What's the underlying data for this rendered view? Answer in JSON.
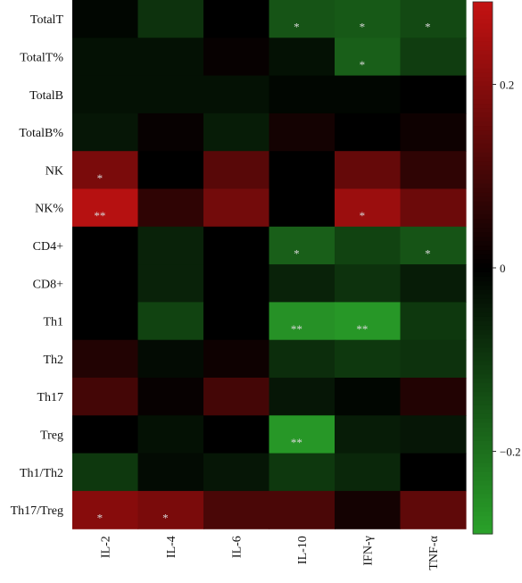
{
  "chart_data": {
    "type": "heatmap",
    "rows": [
      "TotalT",
      "TotalT%",
      "TotalB",
      "TotalB%",
      "NK",
      "NK%",
      "CD4+",
      "CD8+",
      "Th1",
      "Th2",
      "Th17",
      "Treg",
      "Th1/Th2",
      "Th17/Treg"
    ],
    "columns": [
      "IL-2",
      "IL-4",
      "IL-6",
      "IL-10",
      "IFN-γ",
      "TNF-α"
    ],
    "values": [
      [
        -0.01,
        -0.09,
        0.0,
        -0.15,
        -0.16,
        -0.13
      ],
      [
        -0.03,
        -0.03,
        0.01,
        -0.03,
        -0.17,
        -0.11
      ],
      [
        -0.03,
        -0.03,
        -0.03,
        -0.01,
        -0.01,
        0.0
      ],
      [
        -0.04,
        0.01,
        -0.05,
        0.03,
        0.0,
        0.02
      ],
      [
        0.18,
        0.0,
        0.13,
        0.0,
        0.15,
        0.07
      ],
      [
        0.27,
        0.07,
        0.17,
        0.0,
        0.23,
        0.16
      ],
      [
        0.0,
        -0.06,
        0.0,
        -0.17,
        -0.12,
        -0.15
      ],
      [
        0.0,
        -0.06,
        0.0,
        -0.06,
        -0.09,
        -0.05
      ],
      [
        0.0,
        -0.12,
        0.0,
        -0.26,
        -0.27,
        -0.1
      ],
      [
        0.05,
        -0.02,
        0.02,
        -0.08,
        -0.1,
        -0.09
      ],
      [
        0.1,
        0.01,
        0.1,
        -0.04,
        -0.01,
        0.05
      ],
      [
        0.0,
        -0.03,
        0.0,
        -0.27,
        -0.05,
        -0.04
      ],
      [
        -0.1,
        -0.02,
        -0.04,
        -0.1,
        -0.07,
        0.0
      ],
      [
        0.2,
        0.18,
        0.11,
        0.11,
        0.03,
        0.14
      ]
    ],
    "annotations": [
      {
        "row": 0,
        "col": 3,
        "text": "*"
      },
      {
        "row": 0,
        "col": 4,
        "text": "*"
      },
      {
        "row": 0,
        "col": 5,
        "text": "*"
      },
      {
        "row": 1,
        "col": 4,
        "text": "*"
      },
      {
        "row": 4,
        "col": 0,
        "text": "*"
      },
      {
        "row": 5,
        "col": 0,
        "text": "**"
      },
      {
        "row": 5,
        "col": 4,
        "text": "*"
      },
      {
        "row": 6,
        "col": 3,
        "text": "*"
      },
      {
        "row": 6,
        "col": 5,
        "text": "*"
      },
      {
        "row": 8,
        "col": 3,
        "text": "**"
      },
      {
        "row": 8,
        "col": 4,
        "text": "**"
      },
      {
        "row": 11,
        "col": 3,
        "text": "**"
      },
      {
        "row": 13,
        "col": 0,
        "text": "*"
      },
      {
        "row": 13,
        "col": 1,
        "text": "*"
      }
    ],
    "colorbar": {
      "min": -0.29,
      "max": 0.29,
      "ticks": [
        0.2,
        0,
        -0.2
      ],
      "tick_labels": [
        "0.2",
        "0",
        "−0.2"
      ],
      "positive_color": "#c41212",
      "zero_color": "#000000",
      "negative_color": "#2aa22a"
    },
    "title": "",
    "xlabel": "",
    "ylabel": ""
  }
}
